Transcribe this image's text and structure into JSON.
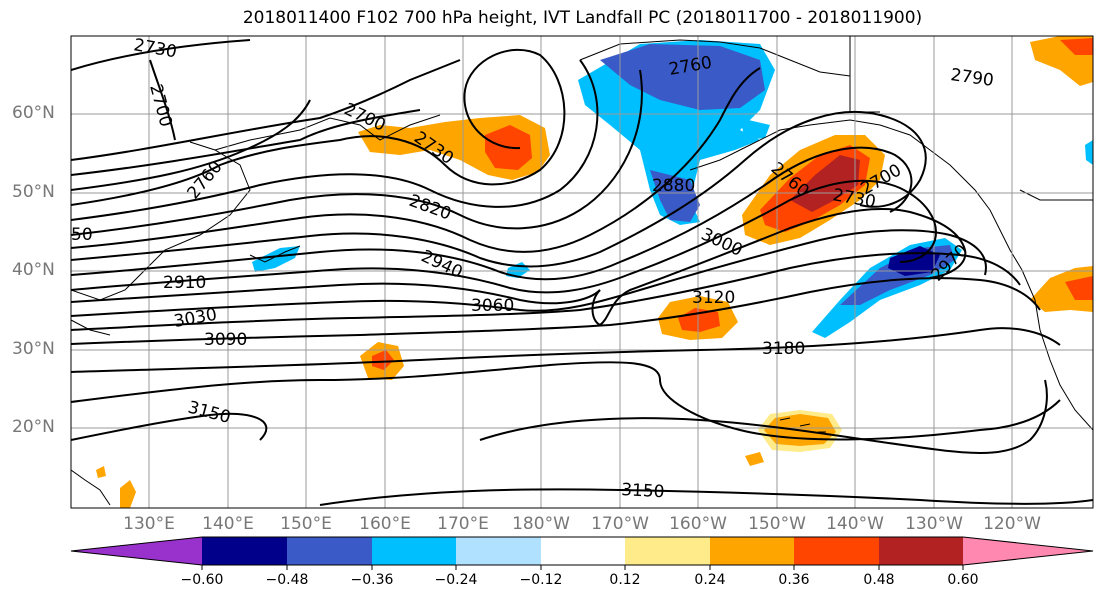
{
  "title": "2018011400 F102 700 hPa height, IVT Landfall PC (2018011700 - 2018011900)",
  "latitude_labels": [
    "60°N",
    "50°N",
    "40°N",
    "30°N",
    "20°N"
  ],
  "longitude_labels": [
    "130°E",
    "140°E",
    "150°E",
    "160°E",
    "170°E",
    "180°W",
    "170°W",
    "160°W",
    "150°W",
    "140°W",
    "130°W",
    "120°W"
  ],
  "contour_labels": [
    "2730",
    "2700",
    "2760",
    "2700",
    "2730",
    "2820",
    "2760",
    "2880",
    "3000",
    "2760",
    "2730",
    "2700",
    "2790",
    "2910",
    "2940",
    "2970",
    "3030",
    "3060",
    "3090",
    "3120",
    "3180",
    "3150",
    "3150",
    "50"
  ],
  "colorbar": {
    "ticks": [
      "−0.60",
      "−0.48",
      "−0.36",
      "−0.24",
      "−0.12",
      "0.12",
      "0.24",
      "0.36",
      "0.48",
      "0.60"
    ],
    "colors": [
      "#9932cc",
      "#00008b",
      "#3a5ac8",
      "#00bfff",
      "#b0e2ff",
      "#ffffff",
      "#ffeb8a",
      "#ffa500",
      "#ff4500",
      "#b22222",
      "#ff88b0"
    ]
  },
  "field_colors": {
    "negative_light": "#00bfff",
    "negative_mid": "#3a5ac8",
    "negative_dark": "#00008b",
    "positive_light": "#ffa500",
    "positive_mid": "#ff4500",
    "positive_dark": "#b22222",
    "positive_faint": "#ffeb8a"
  }
}
